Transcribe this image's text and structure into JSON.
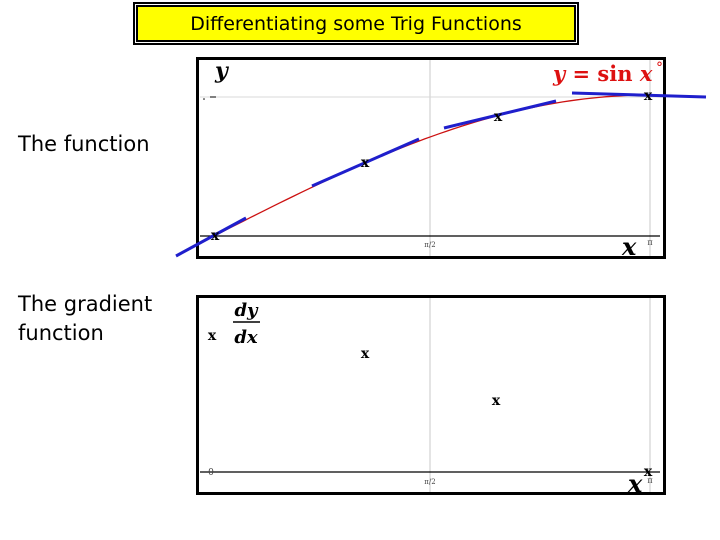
{
  "title": "Differentiating some Trig Functions",
  "labels": {
    "function": "The function",
    "gradient_line1": "The gradient",
    "gradient_line2": "function"
  },
  "top_graph": {
    "y_axis_label": "y",
    "equation": "y = sin x",
    "x_axis_label": "x",
    "mid_tick": "π/2",
    "end_tick": "π",
    "degree_symbol": "°"
  },
  "bottom_graph": {
    "y_axis_label_num": "dy",
    "y_axis_label_den": "dx",
    "x_axis_label": "x",
    "origin_tick": "0",
    "mid_tick": "π/2",
    "end_tick": "π"
  },
  "colors": {
    "title_bg": "#ffff00",
    "curve": "#cc1111",
    "tangent": "#1f1fcc",
    "equation": "#dd1111"
  },
  "marker_icon": "cross-marker"
}
